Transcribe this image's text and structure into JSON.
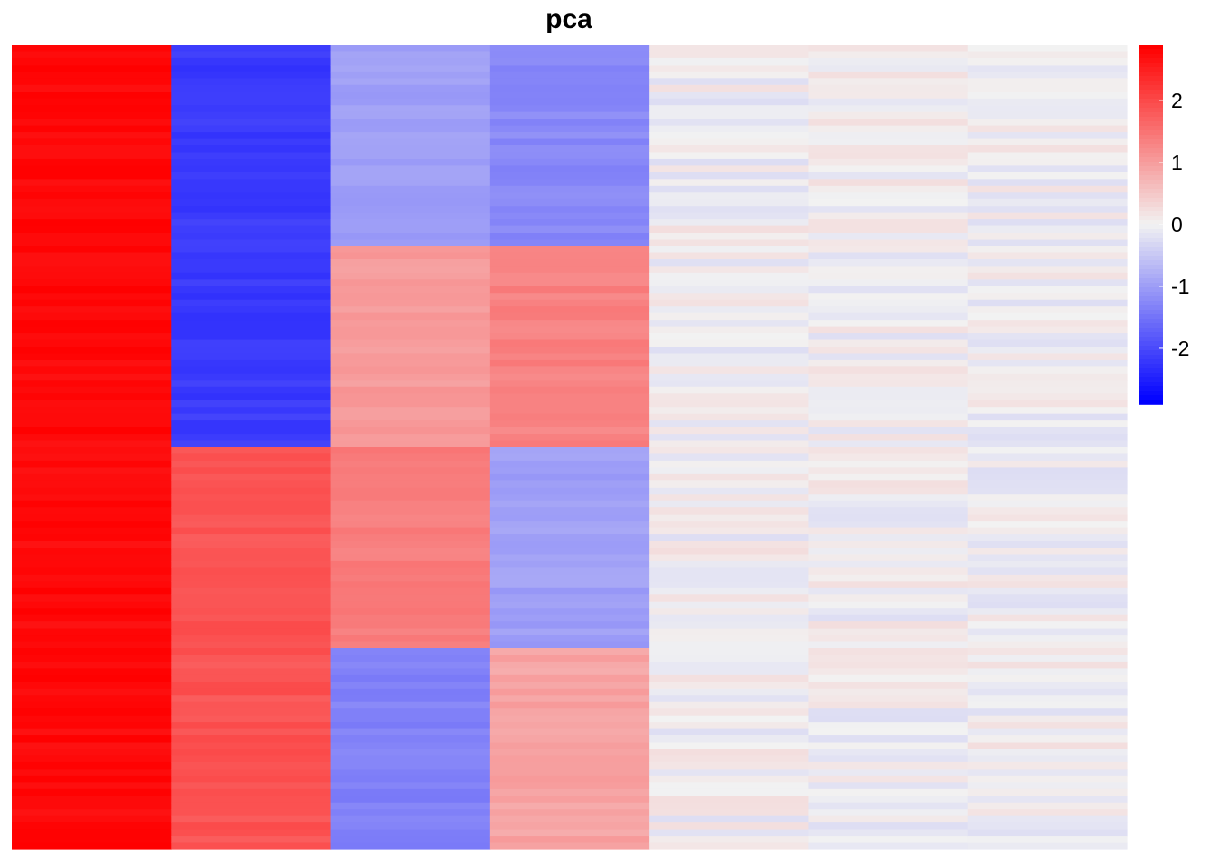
{
  "chart_data": {
    "type": "heatmap",
    "title": "pca",
    "n_columns": 7,
    "n_rows": 120,
    "color_scale": {
      "low": "#0000FF",
      "mid": "#F2F2F2",
      "high": "#FF0000",
      "min": -2.9,
      "max": 2.9
    },
    "legend": {
      "position": "right",
      "ticks": [
        2,
        1,
        0,
        -1,
        -2
      ],
      "tick_labels": [
        "2",
        "1",
        "0",
        "-1",
        "-2"
      ]
    },
    "column_blocks": [
      [
        {
          "row_start": 0,
          "row_end": 120,
          "value": 2.8
        }
      ],
      [
        {
          "row_start": 0,
          "row_end": 60,
          "value": -2.2
        },
        {
          "row_start": 60,
          "row_end": 120,
          "value": 1.9
        }
      ],
      [
        {
          "row_start": 0,
          "row_end": 30,
          "value": -1.0
        },
        {
          "row_start": 30,
          "row_end": 60,
          "value": 1.05
        },
        {
          "row_start": 60,
          "row_end": 90,
          "value": 1.4
        },
        {
          "row_start": 90,
          "row_end": 120,
          "value": -1.35
        }
      ],
      [
        {
          "row_start": 0,
          "row_end": 30,
          "value": -1.25
        },
        {
          "row_start": 30,
          "row_end": 60,
          "value": 1.35
        },
        {
          "row_start": 60,
          "row_end": 90,
          "value": -1.0
        },
        {
          "row_start": 90,
          "row_end": 120,
          "value": 0.95
        }
      ],
      [
        {
          "row_start": 0,
          "row_end": 120,
          "value": 0.0
        }
      ],
      [
        {
          "row_start": 0,
          "row_end": 120,
          "value": 0.0
        }
      ],
      [
        {
          "row_start": 0,
          "row_end": 120,
          "value": 0.0
        }
      ]
    ],
    "noise_amplitude": [
      0.12,
      0.12,
      0.1,
      0.12,
      0.25,
      0.25,
      0.25
    ]
  }
}
